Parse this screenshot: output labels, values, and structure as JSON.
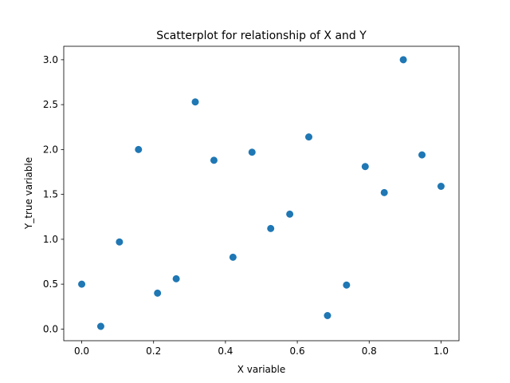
{
  "chart_data": {
    "type": "scatter",
    "title": "Scatterplot for relationship of X and Y",
    "xlabel": "X variable",
    "ylabel": "Y_true variable",
    "xlim": [
      -0.05,
      1.05
    ],
    "ylim": [
      -0.13,
      3.15
    ],
    "xticks": [
      0.0,
      0.2,
      0.4,
      0.6,
      0.8,
      1.0
    ],
    "xtick_labels": [
      "0.0",
      "0.2",
      "0.4",
      "0.6",
      "0.8",
      "1.0"
    ],
    "yticks": [
      0.0,
      0.5,
      1.0,
      1.5,
      2.0,
      2.5,
      3.0
    ],
    "ytick_labels": [
      "0.0",
      "0.5",
      "1.0",
      "1.5",
      "2.0",
      "2.5",
      "3.0"
    ],
    "grid": false,
    "marker_color": "#1f77b4",
    "points": [
      {
        "x": 0.0,
        "y": 0.5
      },
      {
        "x": 0.053,
        "y": 0.03
      },
      {
        "x": 0.105,
        "y": 0.97
      },
      {
        "x": 0.158,
        "y": 2.0
      },
      {
        "x": 0.211,
        "y": 0.4
      },
      {
        "x": 0.263,
        "y": 0.56
      },
      {
        "x": 0.316,
        "y": 2.53
      },
      {
        "x": 0.368,
        "y": 1.88
      },
      {
        "x": 0.421,
        "y": 0.8
      },
      {
        "x": 0.474,
        "y": 1.97
      },
      {
        "x": 0.526,
        "y": 1.12
      },
      {
        "x": 0.579,
        "y": 1.28
      },
      {
        "x": 0.632,
        "y": 2.14
      },
      {
        "x": 0.684,
        "y": 0.15
      },
      {
        "x": 0.737,
        "y": 0.49
      },
      {
        "x": 0.789,
        "y": 1.81
      },
      {
        "x": 0.842,
        "y": 1.52
      },
      {
        "x": 0.895,
        "y": 3.0
      },
      {
        "x": 0.947,
        "y": 1.94
      },
      {
        "x": 1.0,
        "y": 1.59
      }
    ]
  }
}
